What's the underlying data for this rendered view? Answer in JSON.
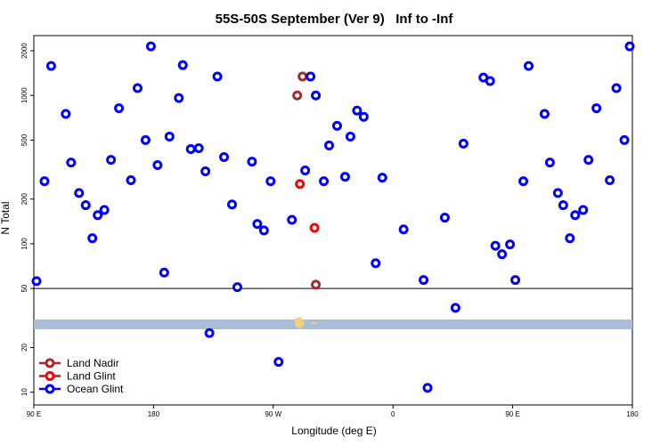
{
  "chart_data": {
    "type": "scatter",
    "title": "55S-50S September (Ver 9)   Inf to -Inf",
    "x_label": "Longitude (deg E)",
    "y_label": "N Total",
    "xlim": [
      90,
      540
    ],
    "xticks": [
      {
        "value": 90,
        "label": "90 E"
      },
      {
        "value": 180,
        "label": "180"
      },
      {
        "value": 270,
        "label": "90 W"
      },
      {
        "value": 360,
        "label": "0"
      },
      {
        "value": 450,
        "label": "90 E"
      },
      {
        "value": 540,
        "label": "180"
      }
    ],
    "ylim": [
      8.2,
      2530
    ],
    "yticks": [
      10,
      20,
      50,
      100,
      200,
      500,
      1000,
      2000
    ],
    "log_y": true,
    "grid": false,
    "legend": "lower left",
    "series": [
      {
        "name": "Land Nadir",
        "color": "#a52a2a",
        "x": [
          288,
          292,
          302
        ],
        "values": [
          1000,
          1340,
          53
        ]
      },
      {
        "name": "Land Glint",
        "color": "#ff0000",
        "x": [
          290,
          301
        ],
        "values": [
          253,
          128
        ]
      },
      {
        "name": "Ocean Glint",
        "color": "#0000ff",
        "x": [
          92,
          98,
          103,
          114,
          118,
          124,
          129,
          134,
          138,
          143,
          148,
          154,
          163,
          168,
          174,
          178,
          183,
          188,
          192,
          199,
          202,
          208,
          214,
          219,
          222,
          228,
          233,
          239,
          243,
          254,
          258,
          263,
          268,
          274,
          284,
          294,
          298,
          302,
          308,
          312,
          318,
          324,
          328,
          333,
          338,
          347,
          352,
          368,
          383,
          386,
          399,
          407,
          413,
          428,
          433,
          437,
          442,
          448,
          452,
          458,
          462,
          474,
          478,
          484,
          488,
          493,
          497,
          503,
          507,
          513,
          523,
          528,
          534,
          538
        ],
        "values": [
          56,
          264,
          1580,
          750,
          353,
          220,
          182,
          109,
          156,
          169,
          368,
          820,
          268,
          1120,
          500,
          2140,
          339,
          64,
          528,
          960,
          1600,
          435,
          441,
          308,
          25,
          1340,
          384,
          184,
          51,
          358,
          136,
          123,
          264,
          16,
          145,
          312,
          1340,
          1000,
          264,
          460,
          624,
          283,
          528,
          790,
          717,
          74,
          279,
          125,
          57,
          10.7,
          150,
          37,
          473,
          1320,
          1250,
          97,
          85,
          99,
          57,
          264,
          1580,
          750,
          353,
          220,
          182,
          109,
          156,
          169,
          368,
          820,
          268,
          1120,
          500,
          2140
        ]
      }
    ]
  }
}
